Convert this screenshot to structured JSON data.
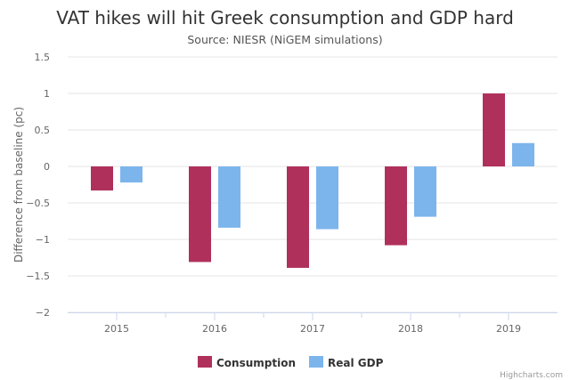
{
  "chart_data": {
    "type": "bar",
    "title": "VAT hikes will hit Greek consumption and GDP hard",
    "subtitle": "Source: NIESR (NiGEM simulations)",
    "xlabel": "",
    "ylabel": "Difference from baseline (pc)",
    "ylim": [
      -2,
      1.5
    ],
    "yticks": [
      1.5,
      1,
      0.5,
      0,
      -0.5,
      -1,
      -1.5,
      -2
    ],
    "ytick_labels": [
      "1.5",
      "1",
      "0.5",
      "0",
      "−0.5",
      "−1",
      "−1.5",
      "−2"
    ],
    "categories": [
      "2015",
      "2016",
      "2017",
      "2018",
      "2019"
    ],
    "series": [
      {
        "name": "Consumption",
        "color": "#b0305c",
        "values": [
          -0.33,
          -1.31,
          -1.39,
          -1.08,
          1.0
        ]
      },
      {
        "name": "Real GDP",
        "color": "#7cb5ec",
        "values": [
          -0.22,
          -0.84,
          -0.86,
          -0.69,
          0.32
        ]
      }
    ],
    "grid": true,
    "legend_position": "bottom-center",
    "credit": "Highcharts.com"
  }
}
